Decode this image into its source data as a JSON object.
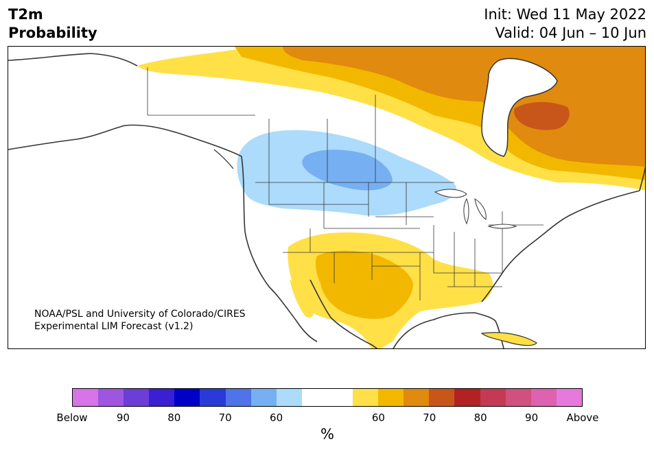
{
  "title": {
    "line1": "T2m",
    "line2": "Probability",
    "init": "Init: Wed 11 May 2022",
    "valid": "Valid: 04 Jun – 10 Jun"
  },
  "credit": {
    "line1": "NOAA/PSL and University of Colorado/CIRES",
    "line2": "Experimental LIM Forecast (v1.2)"
  },
  "colorbar": {
    "colors": [
      "#d674e8",
      "#9e55e0",
      "#6b3ed8",
      "#3a1fd4",
      "#0000c8",
      "#2a3ad8",
      "#4f73e8",
      "#76b0f2",
      "#acdbfb",
      "#ffffff",
      "#ffffff",
      "#ffe047",
      "#f2b800",
      "#e08a10",
      "#c8561a",
      "#b22222",
      "#c43a54",
      "#d0507e",
      "#dd62b0",
      "#e879dc"
    ],
    "tick_labels": [
      "Below",
      "90",
      "80",
      "70",
      "60",
      "60",
      "70",
      "80",
      "90",
      "Above"
    ],
    "unit": "%"
  },
  "map_colors": {
    "land_outline": "#333333",
    "yellow": "#ffe047",
    "gold": "#f2b800",
    "orange": "#e08a10",
    "dark_orange": "#c8561a",
    "light_blue": "#acdbfb",
    "mid_blue": "#76b0f2",
    "blue": "#5a94ec"
  }
}
